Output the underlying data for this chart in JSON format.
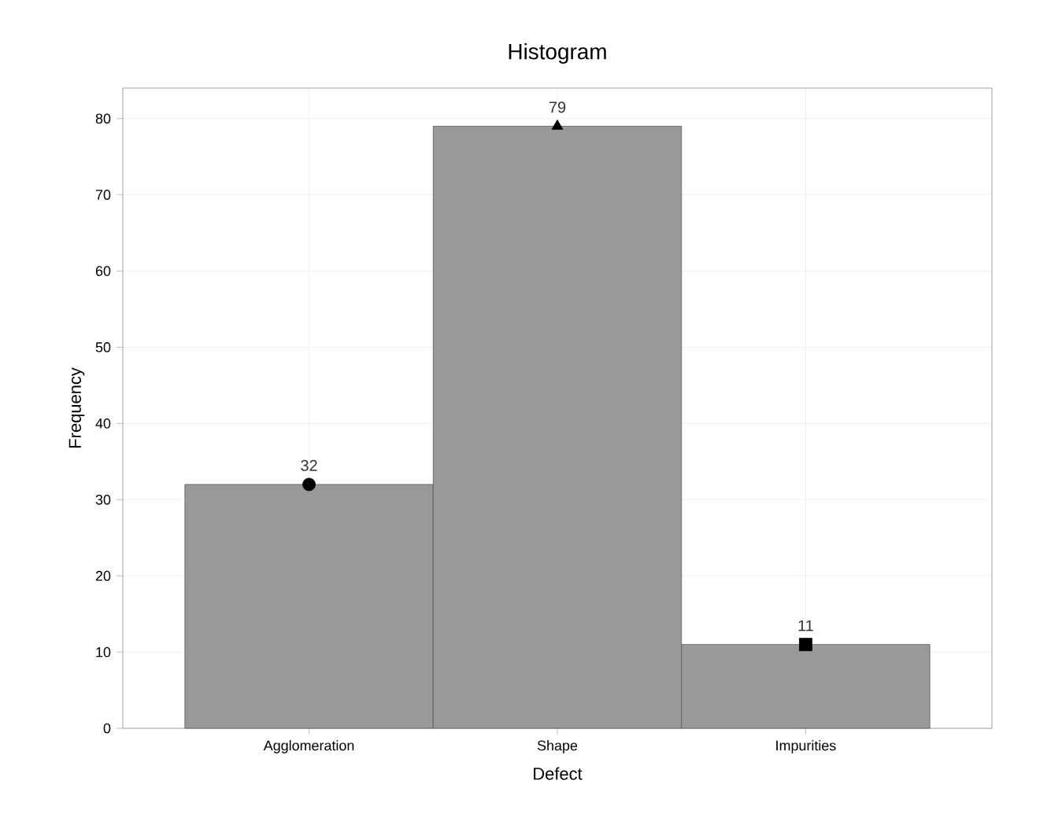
{
  "chart_data": {
    "type": "bar",
    "title": "Histogram",
    "xlabel": "Defect",
    "ylabel": "Frequency",
    "categories": [
      "Agglomeration",
      "Shape",
      "Impurities"
    ],
    "series": [
      {
        "color": "#999999",
        "values": [
          32,
          79,
          11
        ],
        "value_labels": [
          "32",
          "79",
          "11"
        ]
      },
      {
        "type": "scatter",
        "color": "#000000",
        "marker": "circle",
        "values": [
          32,
          null,
          null
        ]
      },
      {
        "type": "scatter",
        "color": "#000000",
        "marker": "triangle",
        "values": [
          null,
          79,
          null
        ]
      },
      {
        "type": "scatter",
        "color": "#000000",
        "marker": "square",
        "values": [
          null,
          null,
          11
        ]
      }
    ],
    "ylim": [
      0,
      84
    ],
    "yticks": [
      0,
      10,
      20,
      30,
      40,
      50,
      60,
      70,
      80
    ],
    "grid": true
  }
}
